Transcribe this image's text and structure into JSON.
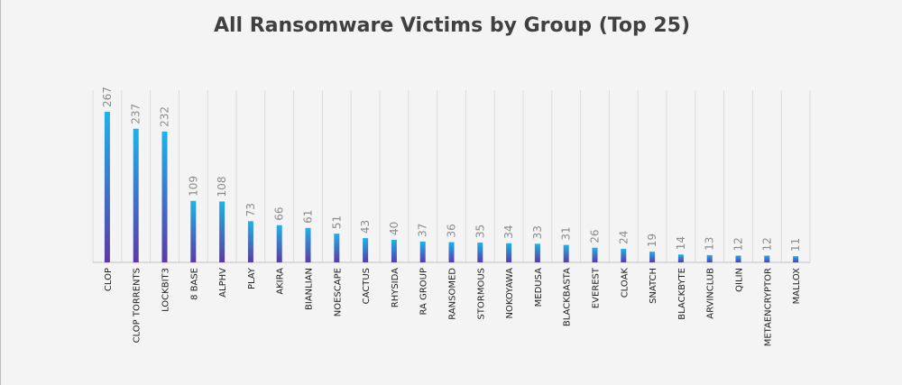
{
  "chart_data": {
    "type": "bar",
    "title": "All Ransomware Victims by Group (Top 25)",
    "xlabel": "",
    "ylabel": "",
    "categories": [
      "CLOP",
      "CLOP TORRENTS",
      "LOCKBIT3",
      "8 BASE",
      "ALPHV",
      "PLAY",
      "AKIRA",
      "BIANLIAN",
      "NOESCAPE",
      "CACTUS",
      "RHYSIDA",
      "RA GROUP",
      "RANSOMED",
      "STORMOUS",
      "NOKOYAWA",
      "MEDUSA",
      "BLACKBASTA",
      "EVEREST",
      "CLOAK",
      "SNATCH",
      "BLACKBYTE",
      "ARVINCLUB",
      "QILIN",
      "METAENCRYPTOR",
      "MALLOX"
    ],
    "values": [
      267,
      237,
      232,
      109,
      108,
      73,
      66,
      61,
      51,
      43,
      40,
      37,
      36,
      35,
      34,
      33,
      31,
      26,
      24,
      19,
      14,
      13,
      12,
      12,
      11
    ],
    "ylim": [
      0,
      290
    ],
    "grid": false,
    "data_labels": true,
    "colors": {
      "bar_top": "#1eb2ec",
      "bar_bottom": "#5b3aa6",
      "separator": "#dcdcdc",
      "baseline": "#bfbfbf",
      "value_label": "#8c8c8c",
      "title": "#404040"
    }
  }
}
